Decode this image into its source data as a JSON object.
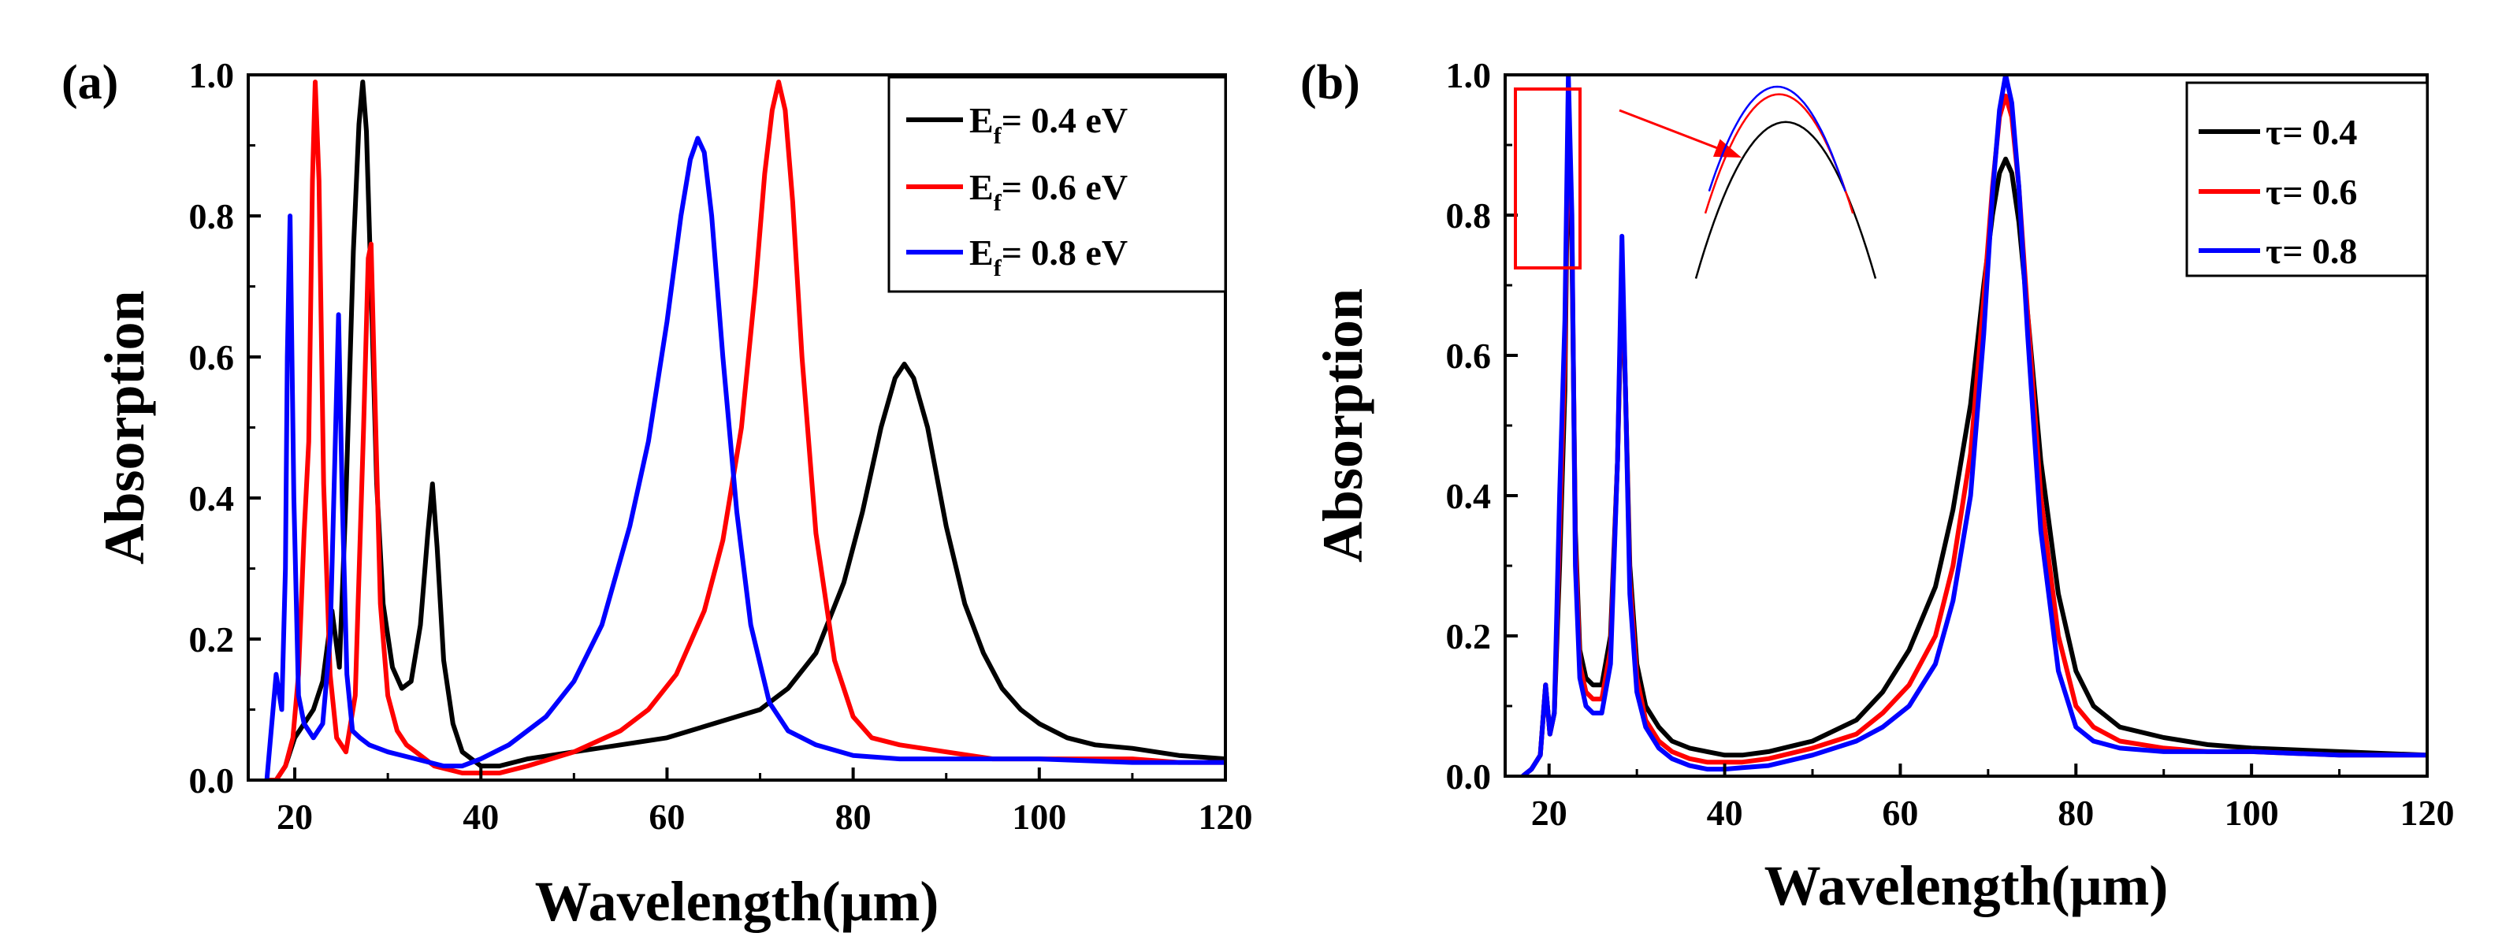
{
  "chart_data": [
    {
      "panel_label": "(a)",
      "type": "line",
      "xlabel": "Wavelength(μm)",
      "ylabel": "Absorption",
      "xlim": [
        15,
        120
      ],
      "ylim": [
        0,
        1.0
      ],
      "xticks": [
        20,
        40,
        60,
        80,
        100,
        120
      ],
      "xtick_labels": [
        "20",
        "40",
        "60",
        "80",
        "100",
        "120"
      ],
      "yticks": [
        0,
        0.2,
        0.4,
        0.6,
        0.8,
        1.0
      ],
      "ytick_labels": [
        "0.0",
        "0.2",
        "0.4",
        "0.6",
        "0.8",
        "1.0"
      ],
      "grid": false,
      "legend_position": "top-right",
      "series": [
        {
          "name": "E_f = 0.4 eV",
          "legend_main": "E",
          "legend_sub": "f",
          "legend_rest": "= 0.4 eV",
          "color": "#000000",
          "x": [
            17,
            18,
            19,
            20,
            21,
            22,
            23,
            24,
            24.8,
            25.5,
            26.3,
            26.9,
            27.3,
            27.7,
            28.2,
            28.8,
            29.5,
            30.5,
            31.5,
            32.5,
            33.5,
            34.3,
            34.8,
            35.3,
            36.0,
            37,
            38,
            40,
            42,
            45,
            50,
            55,
            60,
            65,
            70,
            73,
            76,
            79,
            81,
            83,
            84.5,
            85.5,
            86.5,
            88,
            90,
            92,
            94,
            96,
            98,
            100,
            103,
            106,
            110,
            115,
            120
          ],
          "y": [
            0.0,
            0.0,
            0.02,
            0.06,
            0.08,
            0.1,
            0.14,
            0.24,
            0.16,
            0.4,
            0.75,
            0.93,
            0.99,
            0.92,
            0.7,
            0.42,
            0.25,
            0.16,
            0.13,
            0.14,
            0.22,
            0.35,
            0.42,
            0.33,
            0.17,
            0.08,
            0.04,
            0.02,
            0.02,
            0.03,
            0.04,
            0.05,
            0.06,
            0.08,
            0.1,
            0.13,
            0.18,
            0.28,
            0.38,
            0.5,
            0.57,
            0.59,
            0.57,
            0.5,
            0.36,
            0.25,
            0.18,
            0.13,
            0.1,
            0.08,
            0.06,
            0.05,
            0.045,
            0.035,
            0.03
          ]
        },
        {
          "name": "E_f = 0.6 eV",
          "legend_main": "E",
          "legend_sub": "f",
          "legend_rest": "= 0.6 eV",
          "color": "#ff0000",
          "x": [
            17,
            18,
            19,
            19.8,
            20.4,
            21.0,
            21.5,
            21.9,
            22.2,
            22.6,
            23.1,
            23.8,
            24.5,
            25.5,
            26.5,
            27.4,
            27.9,
            28.2,
            28.6,
            29.2,
            30,
            31,
            32,
            33,
            35,
            38,
            40,
            42,
            45,
            50,
            55,
            58,
            61,
            64,
            66,
            68,
            69.5,
            70.5,
            71.3,
            72,
            72.7,
            73.5,
            74.5,
            76,
            78,
            80,
            82,
            85,
            90,
            95,
            100,
            105,
            110,
            115,
            120
          ],
          "y": [
            0.0,
            0.0,
            0.02,
            0.06,
            0.15,
            0.35,
            0.48,
            0.85,
            0.99,
            0.85,
            0.42,
            0.15,
            0.06,
            0.04,
            0.12,
            0.5,
            0.74,
            0.76,
            0.55,
            0.25,
            0.12,
            0.07,
            0.05,
            0.04,
            0.02,
            0.01,
            0.01,
            0.01,
            0.02,
            0.04,
            0.07,
            0.1,
            0.15,
            0.24,
            0.34,
            0.5,
            0.7,
            0.86,
            0.95,
            0.99,
            0.95,
            0.82,
            0.6,
            0.35,
            0.17,
            0.09,
            0.06,
            0.05,
            0.04,
            0.03,
            0.03,
            0.03,
            0.03,
            0.025,
            0.025
          ]
        },
        {
          "name": "E_f = 0.8 eV",
          "legend_main": "E",
          "legend_sub": "f",
          "legend_rest": "= 0.8 eV",
          "color": "#0000ff",
          "x": [
            17,
            18.0,
            18.6,
            19.0,
            19.2,
            19.5,
            19.9,
            20.4,
            21,
            22,
            23,
            23.8,
            24.3,
            24.7,
            25.1,
            25.6,
            26.2,
            27,
            28,
            30,
            33,
            36,
            38,
            40,
            43,
            47,
            50,
            53,
            56,
            58,
            60,
            61.5,
            62.5,
            63.3,
            64,
            64.8,
            66,
            67.5,
            69,
            71,
            73,
            76,
            80,
            85,
            90,
            95,
            100,
            110,
            120
          ],
          "y": [
            0.0,
            0.15,
            0.1,
            0.3,
            0.6,
            0.8,
            0.4,
            0.12,
            0.08,
            0.06,
            0.08,
            0.2,
            0.45,
            0.66,
            0.4,
            0.15,
            0.07,
            0.06,
            0.05,
            0.04,
            0.03,
            0.02,
            0.02,
            0.03,
            0.05,
            0.09,
            0.14,
            0.22,
            0.36,
            0.48,
            0.65,
            0.8,
            0.88,
            0.91,
            0.89,
            0.8,
            0.6,
            0.38,
            0.22,
            0.11,
            0.07,
            0.05,
            0.035,
            0.03,
            0.03,
            0.03,
            0.03,
            0.025,
            0.025
          ]
        }
      ]
    },
    {
      "panel_label": "(b)",
      "type": "line",
      "xlabel": "Wavelength(μm)",
      "ylabel": "Absorption",
      "xlim": [
        15,
        120
      ],
      "ylim": [
        0,
        1.0
      ],
      "xticks": [
        20,
        40,
        60,
        80,
        100,
        120
      ],
      "xtick_labels": [
        "20",
        "40",
        "60",
        "80",
        "100",
        "120"
      ],
      "yticks": [
        0,
        0.2,
        0.4,
        0.6,
        0.8,
        1.0
      ],
      "ytick_labels": [
        "0.0",
        "0.2",
        "0.4",
        "0.6",
        "0.8",
        "1.0"
      ],
      "grid": false,
      "legend_position": "top-right",
      "series": [
        {
          "name": "τ= 0.4",
          "legend_main": "τ= 0.4",
          "color": "#000000",
          "x": [
            17,
            18,
            19,
            19.6,
            20.1,
            20.6,
            21.2,
            21.8,
            22.2,
            22.6,
            23.0,
            23.5,
            24.2,
            25,
            26,
            27,
            27.8,
            28.3,
            28.7,
            29.2,
            30,
            31,
            32.5,
            34,
            36,
            38,
            40,
            42,
            45,
            50,
            55,
            58,
            61,
            64,
            66,
            68,
            69.5,
            70.5,
            71.3,
            72,
            72.7,
            73.5,
            74.5,
            76,
            78,
            80,
            82,
            85,
            90,
            95,
            100,
            110,
            120
          ],
          "y": [
            0.0,
            0.01,
            0.03,
            0.13,
            0.06,
            0.09,
            0.3,
            0.55,
            0.96,
            0.75,
            0.35,
            0.18,
            0.14,
            0.13,
            0.13,
            0.2,
            0.45,
            0.72,
            0.55,
            0.3,
            0.16,
            0.1,
            0.07,
            0.05,
            0.04,
            0.035,
            0.03,
            0.03,
            0.035,
            0.05,
            0.08,
            0.12,
            0.18,
            0.27,
            0.38,
            0.53,
            0.7,
            0.8,
            0.86,
            0.88,
            0.86,
            0.79,
            0.66,
            0.45,
            0.26,
            0.15,
            0.1,
            0.07,
            0.055,
            0.045,
            0.04,
            0.035,
            0.03
          ]
        },
        {
          "name": "τ= 0.6",
          "legend_main": "τ= 0.6",
          "color": "#ff0000",
          "x": [
            17,
            18,
            19,
            19.6,
            20.1,
            20.6,
            21.2,
            21.8,
            22.2,
            22.6,
            23.0,
            23.5,
            24.2,
            25,
            26,
            27,
            27.8,
            28.3,
            28.7,
            29.2,
            30,
            31,
            32.5,
            34,
            36,
            38,
            40,
            42,
            45,
            50,
            55,
            58,
            61,
            64,
            66,
            68,
            69.5,
            70.5,
            71.3,
            72,
            72.7,
            73.5,
            74.5,
            76,
            78,
            80,
            82,
            85,
            90,
            95,
            100,
            110,
            120
          ],
          "y": [
            0.0,
            0.01,
            0.03,
            0.13,
            0.06,
            0.09,
            0.35,
            0.6,
            0.98,
            0.78,
            0.33,
            0.16,
            0.12,
            0.11,
            0.11,
            0.18,
            0.45,
            0.74,
            0.55,
            0.28,
            0.14,
            0.08,
            0.05,
            0.035,
            0.025,
            0.02,
            0.02,
            0.02,
            0.025,
            0.04,
            0.06,
            0.09,
            0.13,
            0.2,
            0.3,
            0.46,
            0.68,
            0.84,
            0.94,
            0.97,
            0.94,
            0.84,
            0.66,
            0.4,
            0.2,
            0.1,
            0.07,
            0.05,
            0.04,
            0.035,
            0.035,
            0.03,
            0.03
          ]
        },
        {
          "name": "τ= 0.8",
          "legend_main": "τ= 0.8",
          "color": "#0000ff",
          "x": [
            17,
            18,
            19,
            19.6,
            20.1,
            20.6,
            21.2,
            21.8,
            22.2,
            22.6,
            23.0,
            23.5,
            24.2,
            25,
            26,
            27,
            27.8,
            28.3,
            28.7,
            29.2,
            30,
            31,
            32.5,
            34,
            36,
            38,
            40,
            42,
            45,
            50,
            55,
            58,
            61,
            64,
            66,
            68,
            69.5,
            70.5,
            71.3,
            72,
            72.7,
            73.5,
            74.5,
            76,
            78,
            80,
            82,
            85,
            90,
            95,
            100,
            110,
            120
          ],
          "y": [
            0.0,
            0.01,
            0.03,
            0.13,
            0.06,
            0.09,
            0.4,
            0.65,
            1.0,
            0.8,
            0.3,
            0.14,
            0.1,
            0.09,
            0.09,
            0.16,
            0.45,
            0.77,
            0.55,
            0.26,
            0.12,
            0.07,
            0.04,
            0.025,
            0.015,
            0.01,
            0.01,
            0.012,
            0.015,
            0.03,
            0.05,
            0.07,
            0.1,
            0.16,
            0.25,
            0.4,
            0.63,
            0.83,
            0.95,
            1.0,
            0.96,
            0.84,
            0.63,
            0.35,
            0.15,
            0.07,
            0.05,
            0.04,
            0.035,
            0.035,
            0.035,
            0.03,
            0.03
          ]
        }
      ],
      "inset": {
        "description": "zoom of peak near 22 μm",
        "source_x_range": [
          18.5,
          26
        ],
        "source_y_range": [
          0.72,
          1.0
        ],
        "series": [
          {
            "color": "#000000",
            "peak": 0.86,
            "center": 0.55,
            "halfwidth": 0.95
          },
          {
            "color": "#ff0000",
            "peak": 0.97,
            "center": 0.48,
            "halfwidth": 0.78
          },
          {
            "color": "#0000ff",
            "peak": 1.0,
            "center": 0.46,
            "halfwidth": 0.72
          }
        ]
      }
    }
  ]
}
